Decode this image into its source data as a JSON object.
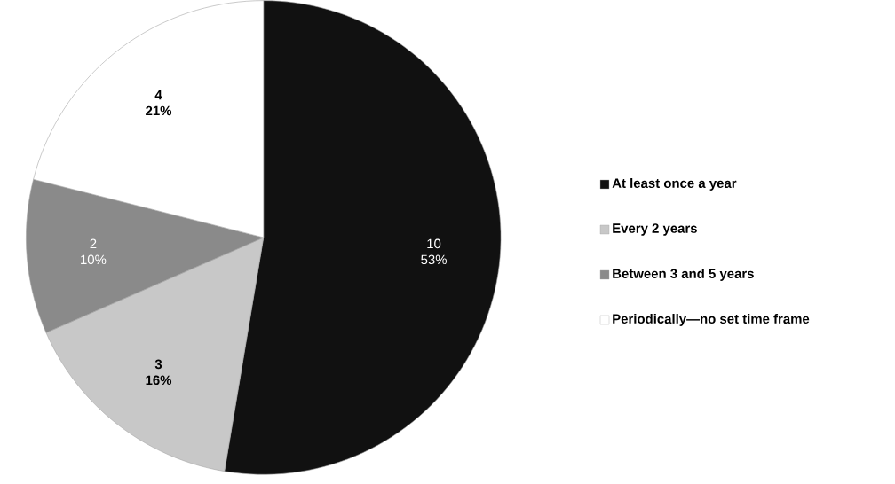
{
  "chart_data": {
    "type": "pie",
    "categories": [
      "At least once a year",
      "Every 2 years",
      "Between 3 and 5 years",
      "Periodically—no set time frame"
    ],
    "values": [
      10,
      3,
      2,
      4
    ],
    "colors": [
      "#111111",
      "#c8c8c8",
      "#8a8a8a",
      "#ffffff"
    ],
    "value_labels": [
      "10 53%",
      "3 16%",
      "2 10%",
      "4 21%"
    ],
    "legend": "right"
  }
}
